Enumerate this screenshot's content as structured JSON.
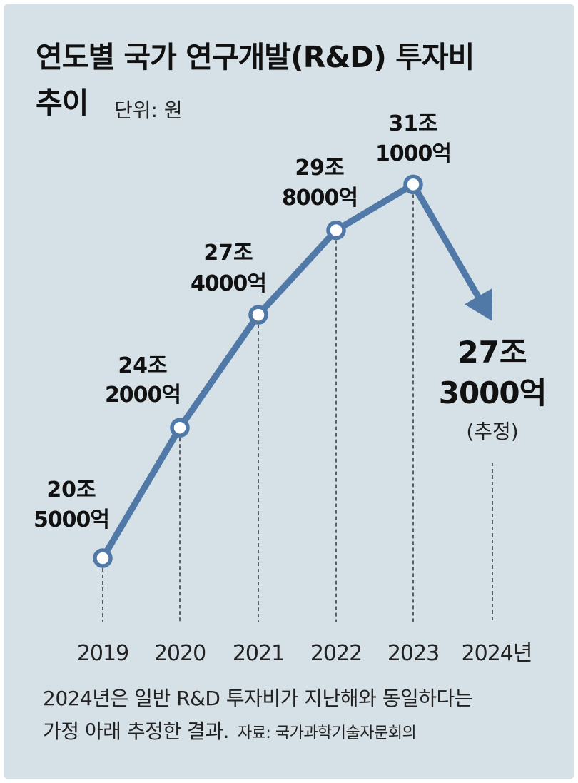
{
  "title_line1": "연도별 국가 연구개발(R&D) 투자비",
  "title_line2": "추이",
  "unit": "단위: 원",
  "chart_data": {
    "type": "line",
    "categories": [
      "2019",
      "2020",
      "2021",
      "2022",
      "2023",
      "2024년"
    ],
    "x_tick_labels": [
      "2019",
      "2020",
      "2021",
      "2022",
      "2023",
      "2024년"
    ],
    "values": [
      20.5,
      24.2,
      27.4,
      29.8,
      31.1,
      27.3
    ],
    "value_unit": "조 원",
    "data_labels": [
      [
        "20조",
        "5000억"
      ],
      [
        "24조",
        "2000억"
      ],
      [
        "27조",
        "4000억"
      ],
      [
        "29조",
        "8000억"
      ],
      [
        "31조",
        "1000억"
      ],
      [
        "27조",
        "3000억"
      ]
    ],
    "estimate_note": "(추정)",
    "estimated_index": 5,
    "line_color": "#5079a8",
    "grid": false
  },
  "footnote": {
    "line1": "2024년은 일반 R&D 투자비가 지난해와 동일하다는",
    "line2": "가정 아래 추정한 결과.",
    "source": "자료: 국가과학기술자문회의"
  }
}
